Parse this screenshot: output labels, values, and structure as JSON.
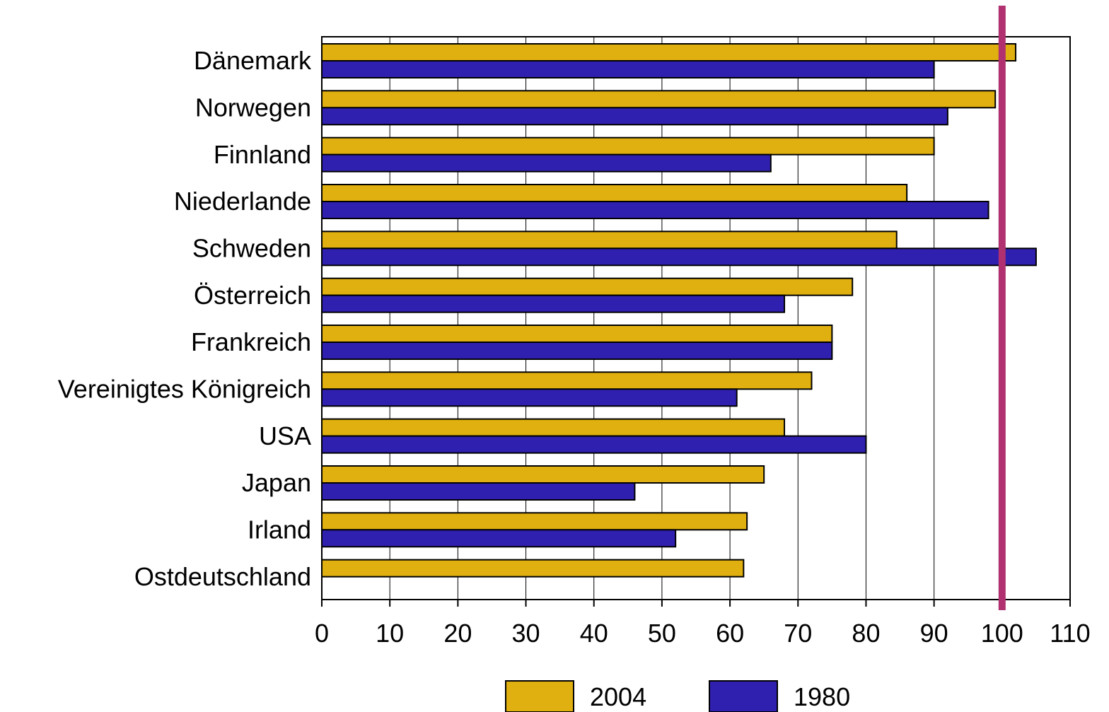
{
  "colors": {
    "series_2004": "#E0B010",
    "series_1980": "#3020B0",
    "reference_line": "#B03070",
    "axis": "#000000",
    "grid": "#000000"
  },
  "chart_data": {
    "type": "bar",
    "orientation": "horizontal",
    "title": "",
    "xlabel": "",
    "ylabel": "",
    "categories": [
      "Dänemark",
      "Norwegen",
      "Finnland",
      "Niederlande",
      "Schweden",
      "Österreich",
      "Frankreich",
      "Vereinigtes Königreich",
      "USA",
      "Japan",
      "Irland",
      "Ostdeutschland"
    ],
    "series": [
      {
        "name": "2004",
        "values": [
          102,
          99,
          90,
          86,
          84.5,
          78,
          75,
          72,
          68,
          65,
          62.5,
          62
        ]
      },
      {
        "name": "1980",
        "values": [
          90,
          92,
          66,
          98,
          105,
          68,
          75,
          61,
          80,
          46,
          52,
          null
        ]
      }
    ],
    "xlim": [
      0,
      110
    ],
    "xticks": [
      "0",
      "10",
      "20",
      "30",
      "40",
      "50",
      "60",
      "70",
      "80",
      "90",
      "100",
      "110"
    ],
    "reference_line_x": 100,
    "grid": "vertical",
    "legend_position": "bottom"
  }
}
